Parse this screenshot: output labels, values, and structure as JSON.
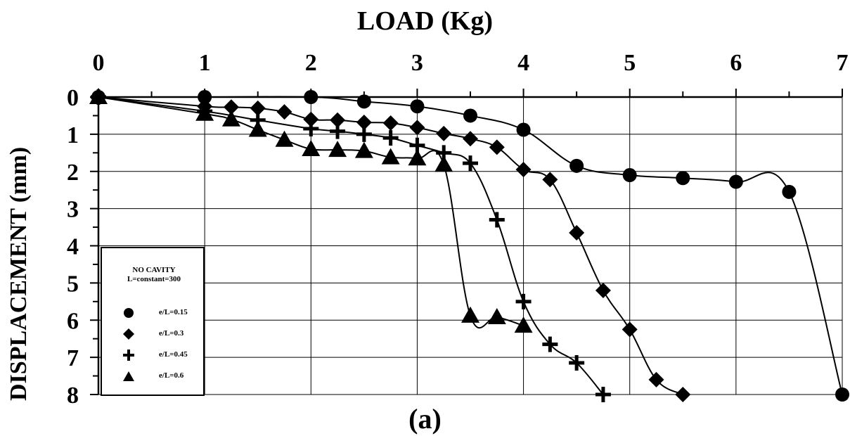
{
  "figure": {
    "xlabel": "LOAD (Kg)",
    "ylabel": "DISPLACEMENT (mm)",
    "caption": "(a)"
  },
  "legend": {
    "title_line1": "NO CAVITY",
    "title_line2": "L=constant=300",
    "entries": [
      {
        "label": "e/L=0.15",
        "marker": "circle"
      },
      {
        "label": "e/L=0.3",
        "marker": "diamond"
      },
      {
        "label": "e/L=0.45",
        "marker": "plus"
      },
      {
        "label": "e/L=0.6",
        "marker": "triangle"
      }
    ]
  },
  "chart_data": {
    "type": "line",
    "xlabel": "LOAD (Kg)",
    "ylabel": "DISPLACEMENT (mm)",
    "xlim": [
      0,
      7
    ],
    "ylim": [
      0,
      8
    ],
    "y_inverted": true,
    "x_axis_position": "top",
    "xticks": [
      0,
      1,
      2,
      3,
      4,
      5,
      6,
      7
    ],
    "yticks": [
      0,
      1,
      2,
      3,
      4,
      5,
      6,
      7,
      8
    ],
    "grid": true,
    "legend_position": "bottom-left",
    "series": [
      {
        "name": "e/L=0.15",
        "marker": "circle",
        "x": [
          0,
          1,
          2,
          2.5,
          3,
          3.5,
          4,
          4.5,
          5,
          5.5,
          6,
          6.5,
          7
        ],
        "y": [
          0,
          0,
          0,
          0.12,
          0.25,
          0.5,
          0.88,
          1.85,
          2.1,
          2.18,
          2.28,
          2.55,
          8.0
        ]
      },
      {
        "name": "e/L=0.3",
        "marker": "diamond",
        "x": [
          0,
          1,
          1.25,
          1.5,
          1.75,
          2,
          2.25,
          2.5,
          2.75,
          3,
          3.25,
          3.5,
          3.75,
          4,
          4.25,
          4.5,
          4.75,
          5,
          5.25,
          5.5
        ],
        "y": [
          0,
          0.25,
          0.27,
          0.3,
          0.4,
          0.6,
          0.62,
          0.68,
          0.7,
          0.82,
          0.98,
          1.12,
          1.35,
          1.95,
          2.22,
          3.65,
          5.2,
          6.25,
          7.6,
          8.0
        ]
      },
      {
        "name": "e/L=0.45",
        "marker": "plus",
        "x": [
          0,
          1,
          1.5,
          2,
          2.25,
          2.5,
          2.75,
          3,
          3.25,
          3.5,
          3.75,
          4,
          4.25,
          4.5,
          4.75
        ],
        "y": [
          0,
          0.38,
          0.62,
          0.85,
          0.92,
          1.0,
          1.1,
          1.3,
          1.5,
          1.78,
          3.3,
          5.5,
          6.65,
          7.15,
          8.0
        ]
      },
      {
        "name": "e/L=0.6",
        "marker": "triangle",
        "x": [
          0,
          1,
          1.25,
          1.5,
          1.75,
          2,
          2.25,
          2.5,
          2.75,
          3,
          3.25,
          3.5,
          3.75,
          4
        ],
        "y": [
          0,
          0.45,
          0.6,
          0.88,
          1.15,
          1.4,
          1.42,
          1.45,
          1.62,
          1.65,
          1.82,
          5.88,
          5.92,
          6.15
        ]
      }
    ]
  }
}
